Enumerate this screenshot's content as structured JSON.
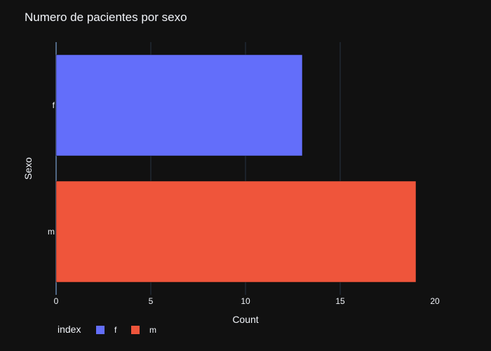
{
  "chart_data": {
    "type": "bar",
    "orientation": "horizontal",
    "title": "Numero de pacientes por sexo",
    "xlabel": "Count",
    "ylabel": "Sexo",
    "categories": [
      "f",
      "m"
    ],
    "series": [
      {
        "name": "f",
        "category": "f",
        "value": 13,
        "color": "#636efa"
      },
      {
        "name": "m",
        "category": "m",
        "value": 19,
        "color": "#ef553b"
      }
    ],
    "xlim": [
      0,
      20
    ],
    "x_ticks": [
      "0",
      "5",
      "10",
      "15",
      "20"
    ],
    "grid": true,
    "legend": {
      "title": "index",
      "position": "bottom-left",
      "items": [
        "f",
        "m"
      ]
    }
  },
  "colors": {
    "background": "#111111",
    "gridline": "#283442",
    "text": "#f2f5fa"
  }
}
